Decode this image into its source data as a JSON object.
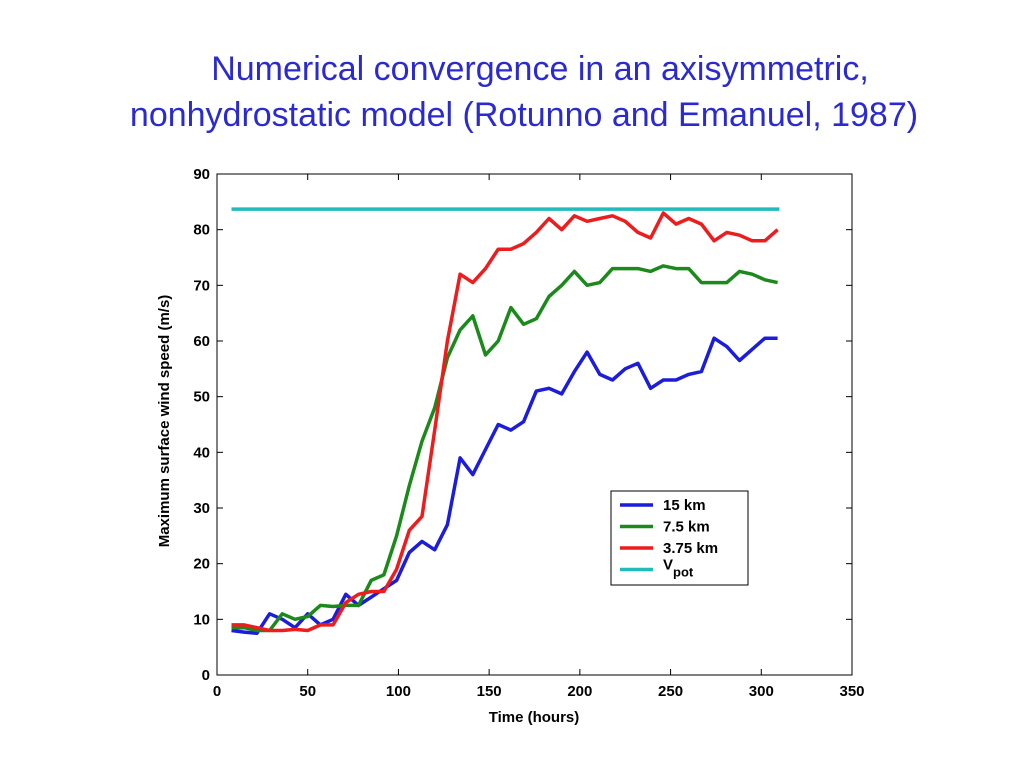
{
  "chart_data": {
    "type": "line",
    "title": [
      "Numerical convergence in an axisymmetric,",
      "nonhydrostatic model (Rotunno and Emanuel, 1987)"
    ],
    "xlabel": "Time (hours)",
    "ylabel": "Maximum surface wind speed (m/s)",
    "xlim": [
      0,
      350
    ],
    "xticks": [
      0,
      50,
      100,
      150,
      200,
      250,
      300,
      350
    ],
    "ylim": [
      0,
      90
    ],
    "yticks": [
      0,
      10,
      20,
      30,
      40,
      50,
      60,
      70,
      80,
      90
    ],
    "x": [
      8,
      15,
      22,
      29,
      36,
      43,
      50,
      57,
      64,
      71,
      78,
      85,
      92,
      99,
      106,
      113,
      120,
      127,
      134,
      141,
      148,
      155,
      162,
      169,
      176,
      183,
      190,
      197,
      204,
      211,
      218,
      225,
      232,
      239,
      246,
      253,
      260,
      267,
      274,
      281,
      288,
      295,
      302,
      309
    ],
    "series": [
      {
        "name": "15 km",
        "color": "#1c1cdc",
        "values": [
          8,
          7.7,
          7.5,
          11,
          10,
          8.5,
          11,
          9,
          10,
          14.5,
          12.5,
          14,
          15.5,
          17,
          22,
          24,
          22.5,
          27,
          39,
          36,
          40.5,
          45,
          44,
          45.5,
          51,
          51.5,
          50.5,
          54.5,
          58,
          54,
          53,
          55,
          56,
          51.5,
          53,
          53,
          54,
          54.5,
          60.5,
          59,
          56.5,
          58.5,
          60.5,
          60.5
        ]
      },
      {
        "name": "7.5 km",
        "color": "#1a8a1a",
        "values": [
          8.5,
          8.5,
          8,
          8,
          11,
          10,
          10.5,
          12.5,
          12.3,
          12.5,
          12.5,
          17,
          18,
          25,
          34,
          42,
          48,
          57,
          62,
          64.5,
          57.5,
          60,
          66,
          63,
          64,
          68,
          70,
          72.5,
          70,
          70.5,
          73,
          73,
          73,
          72.5,
          73.5,
          73,
          73,
          70.5,
          70.5,
          70.5,
          72.5,
          72,
          71,
          70.5
        ]
      },
      {
        "name": "3.75 km",
        "color": "#ee1c1c",
        "values": [
          9,
          9,
          8.5,
          8,
          8,
          8.2,
          8,
          9,
          9,
          13,
          14.5,
          15,
          15,
          19,
          26,
          28.5,
          44,
          60,
          72,
          70.5,
          73,
          76.5,
          76.5,
          77.5,
          79.5,
          82,
          80,
          82.5,
          81.5,
          82,
          82.5,
          81.5,
          79.5,
          78.5,
          83,
          81,
          82,
          81,
          78,
          79.5,
          79,
          78,
          78,
          80
        ]
      },
      {
        "name": "V",
        "name_subscript": "pot",
        "color": "#22bbbb",
        "x": [
          8,
          310
        ],
        "values": [
          83.7,
          83.7
        ]
      }
    ],
    "legend": "lower right"
  }
}
